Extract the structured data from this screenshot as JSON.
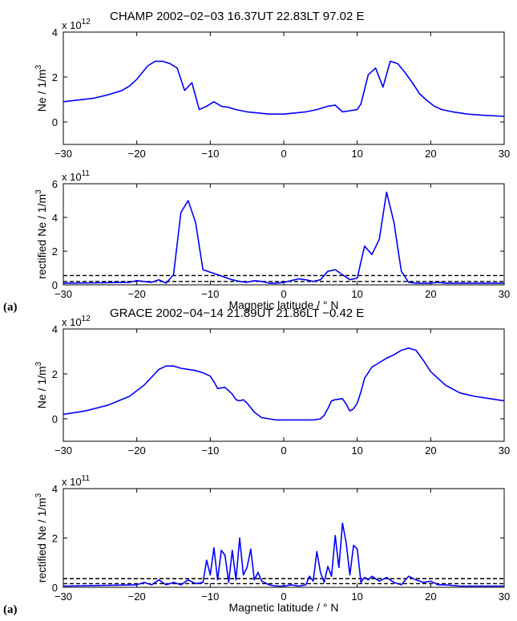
{
  "chart_data": [
    {
      "type": "line",
      "title": "CHAMP  2002−02−03  16.37UT  22.83LT  97.02  E",
      "ylabel": "Ne / 1/m",
      "ylabel_sup": "3",
      "multiplier": "x 10",
      "multiplier_exp": "12",
      "xlabel": "",
      "panel_letter": "",
      "xlim": [
        -30,
        30
      ],
      "ylim": [
        -1,
        4
      ],
      "xticks": [
        "−30",
        "−20",
        "−10",
        "0",
        "10",
        "20",
        "30"
      ],
      "yticks": [
        "0",
        "2",
        "4"
      ],
      "series": [
        {
          "color": "#0000ff",
          "x": [
            -30,
            -26,
            -24,
            -22,
            -21,
            -20,
            -19,
            -18.5,
            -17.5,
            -16.5,
            -15.5,
            -14.5,
            -13.5,
            -12.5,
            -11.5,
            -10.5,
            -9.5,
            -8.5,
            -7.5,
            -6.5,
            -5,
            -3.5,
            -2,
            0,
            1.5,
            3,
            4.5,
            6,
            7,
            8,
            9,
            10,
            10.5,
            11.5,
            12.5,
            13.5,
            14.5,
            15.5,
            16.5,
            17.5,
            18.5,
            19.5,
            20.5,
            21.5,
            23,
            25,
            27,
            30
          ],
          "y": [
            0.9,
            1.05,
            1.2,
            1.4,
            1.6,
            1.9,
            2.3,
            2.5,
            2.7,
            2.7,
            2.6,
            2.4,
            1.4,
            1.75,
            0.55,
            0.7,
            0.9,
            0.7,
            0.65,
            0.55,
            0.45,
            0.4,
            0.35,
            0.35,
            0.4,
            0.45,
            0.55,
            0.7,
            0.75,
            0.45,
            0.5,
            0.55,
            0.8,
            2.1,
            2.4,
            1.55,
            2.7,
            2.6,
            2.2,
            1.75,
            1.25,
            0.95,
            0.7,
            0.55,
            0.45,
            0.35,
            0.3,
            0.25
          ]
        }
      ],
      "hlines": []
    },
    {
      "type": "line",
      "title": "",
      "ylabel": "rectified Ne / 1/m",
      "ylabel_sup": "3",
      "multiplier": "x 10",
      "multiplier_exp": "11",
      "xlabel": "Magnetic latitude / ° N",
      "panel_letter": "(a)",
      "xlim": [
        -30,
        30
      ],
      "ylim": [
        0,
        6
      ],
      "xticks": [
        "−30",
        "−20",
        "−10",
        "0",
        "10",
        "20",
        "30"
      ],
      "yticks": [
        "0",
        "2",
        "4",
        "6"
      ],
      "series": [
        {
          "color": "#0000ff",
          "x": [
            -30,
            -25,
            -21,
            -20,
            -19,
            -18,
            -17,
            -16,
            -15,
            -14,
            -13,
            -12,
            -11,
            -10,
            -9,
            -8,
            -7,
            -6,
            -5,
            -4,
            -3,
            -2,
            -1,
            0,
            1,
            2,
            3,
            4,
            5,
            6,
            7,
            8,
            9,
            10,
            11,
            12,
            13,
            14,
            15,
            16,
            17,
            18,
            19,
            20,
            21,
            22,
            25,
            30
          ],
          "y": [
            0.1,
            0.12,
            0.15,
            0.25,
            0.2,
            0.15,
            0.3,
            0.1,
            0.6,
            4.3,
            5.0,
            3.7,
            0.9,
            0.75,
            0.6,
            0.45,
            0.3,
            0.2,
            0.15,
            0.25,
            0.2,
            0.1,
            0.1,
            0.15,
            0.25,
            0.35,
            0.3,
            0.2,
            0.3,
            0.8,
            0.9,
            0.6,
            0.3,
            0.4,
            2.3,
            1.8,
            2.7,
            5.5,
            3.7,
            0.8,
            0.15,
            0.1,
            0.1,
            0.1,
            0.15,
            0.1,
            0.1,
            0.1
          ]
        }
      ],
      "hlines": [
        {
          "y": 0.2,
          "style": "dashed",
          "color": "#000000"
        },
        {
          "y": 0.55,
          "style": "dashed",
          "color": "#000000"
        }
      ]
    },
    {
      "type": "line",
      "title": "GRACE  2002−04−14  21.89UT  21.86LT  −0.42  E",
      "ylabel": "Ne / 1/m",
      "ylabel_sup": "3",
      "multiplier": "x 10",
      "multiplier_exp": "12",
      "xlabel": "",
      "panel_letter": "",
      "xlim": [
        -30,
        30
      ],
      "ylim": [
        -1,
        4
      ],
      "xticks": [
        "−30",
        "−20",
        "−10",
        "0",
        "10",
        "20",
        "30"
      ],
      "yticks": [
        "0",
        "2",
        "4"
      ],
      "series": [
        {
          "color": "#0000ff",
          "x": [
            -30,
            -27,
            -24,
            -21,
            -19,
            -17,
            -16,
            -15,
            -14,
            -13,
            -12,
            -11,
            -10,
            -9.5,
            -9,
            -8,
            -7.5,
            -7,
            -6.5,
            -6,
            -5.5,
            -5,
            -4,
            -3,
            -2,
            -1,
            0,
            1,
            2,
            3,
            4,
            5,
            5.5,
            6,
            6.5,
            7,
            8,
            8.5,
            9,
            9.5,
            10,
            10.5,
            11,
            12,
            13,
            14,
            15,
            16,
            17,
            18,
            19,
            20,
            22,
            24,
            26,
            28,
            30
          ],
          "y": [
            0.2,
            0.35,
            0.6,
            1.0,
            1.5,
            2.2,
            2.35,
            2.35,
            2.25,
            2.2,
            2.15,
            2.05,
            1.9,
            1.65,
            1.35,
            1.4,
            1.25,
            1.1,
            0.85,
            0.8,
            0.85,
            0.7,
            0.3,
            0.05,
            0.0,
            -0.05,
            -0.05,
            -0.05,
            -0.05,
            -0.05,
            -0.05,
            0.0,
            0.15,
            0.45,
            0.8,
            0.85,
            0.9,
            0.65,
            0.35,
            0.45,
            0.7,
            1.2,
            1.8,
            2.3,
            2.5,
            2.7,
            2.85,
            3.05,
            3.15,
            3.05,
            2.6,
            2.1,
            1.5,
            1.15,
            1.0,
            0.9,
            0.8
          ]
        }
      ],
      "hlines": []
    },
    {
      "type": "line",
      "title": "",
      "ylabel": "rectified Ne / 1/m",
      "ylabel_sup": "3",
      "multiplier": "x 10",
      "multiplier_exp": "11",
      "xlabel": "Magnetic latitude / ° N",
      "panel_letter": "(a)",
      "xlim": [
        -30,
        30
      ],
      "ylim": [
        0,
        4
      ],
      "xticks": [
        "−30",
        "−20",
        "−10",
        "0",
        "10",
        "20",
        "30"
      ],
      "yticks": [
        "0",
        "2",
        "4"
      ],
      "series": [
        {
          "color": "#0000ff",
          "x": [
            -30,
            -20,
            -19,
            -18,
            -17,
            -16,
            -15,
            -14,
            -13,
            -12,
            -11,
            -10.5,
            -10,
            -9.5,
            -9,
            -8.5,
            -8,
            -7.5,
            -7,
            -6.5,
            -6,
            -5.5,
            -5,
            -4.5,
            -4,
            -3.5,
            -3,
            -2,
            -1,
            0,
            1,
            2,
            3,
            3.5,
            4,
            4.5,
            5,
            5.5,
            6,
            6.5,
            7,
            7.5,
            8,
            8.5,
            9,
            9.5,
            10,
            10.5,
            11,
            11.5,
            12,
            12.5,
            13,
            14,
            15,
            16,
            17,
            18,
            19,
            20,
            21,
            22,
            24,
            30
          ],
          "y": [
            0.05,
            0.1,
            0.2,
            0.1,
            0.3,
            0.1,
            0.2,
            0.1,
            0.3,
            0.15,
            0.2,
            1.1,
            0.5,
            1.6,
            0.3,
            1.5,
            1.3,
            0.2,
            1.5,
            0.3,
            2.0,
            0.5,
            0.8,
            1.55,
            0.3,
            0.6,
            0.25,
            0.1,
            0.05,
            0.05,
            0.1,
            0.05,
            0.1,
            0.45,
            0.25,
            1.45,
            0.6,
            0.2,
            0.85,
            0.45,
            2.1,
            0.8,
            2.6,
            1.8,
            0.5,
            1.7,
            1.55,
            0.2,
            0.4,
            0.3,
            0.45,
            0.35,
            0.25,
            0.4,
            0.2,
            0.1,
            0.45,
            0.3,
            0.2,
            0.25,
            0.1,
            0.1,
            0.05,
            0.05
          ]
        }
      ],
      "hlines": [
        {
          "y": 0.15,
          "style": "dashed",
          "color": "#000000"
        },
        {
          "y": 0.35,
          "style": "dashed",
          "color": "#000000"
        }
      ]
    }
  ]
}
